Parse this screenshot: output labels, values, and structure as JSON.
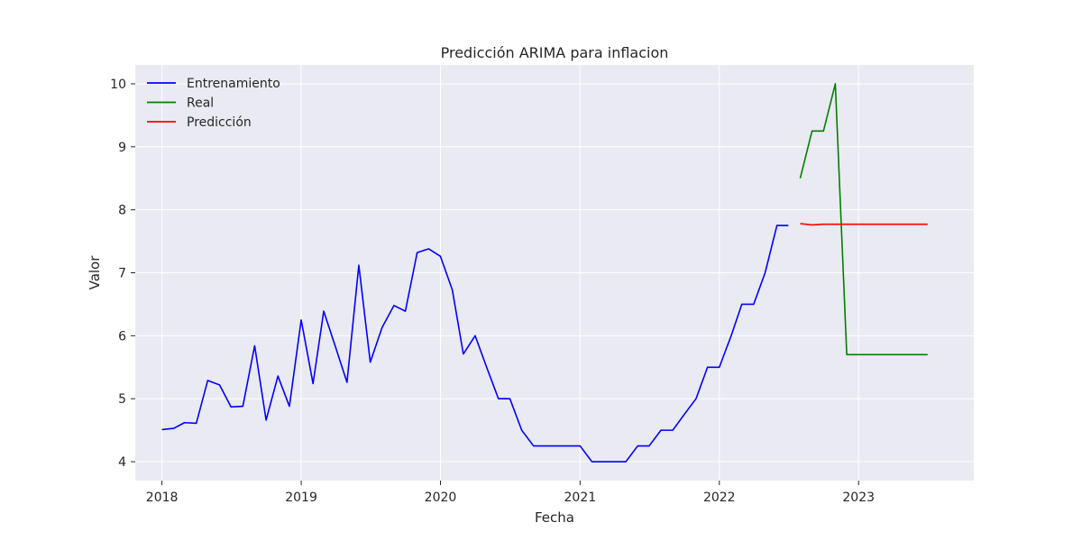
{
  "chart_data": {
    "type": "line",
    "title": "Predicción ARIMA para inflacion",
    "xlabel": "Fecha",
    "ylabel": "Valor",
    "xlim": [
      "2017-10-23",
      "2023-10-30"
    ],
    "ylim": [
      3.7,
      10.3
    ],
    "x_ticks": [
      "2018",
      "2019",
      "2020",
      "2021",
      "2022",
      "2023"
    ],
    "y_ticks": [
      4,
      5,
      6,
      7,
      8,
      9,
      10
    ],
    "grid": true,
    "legend_position": "top-left",
    "series": [
      {
        "name": "Entrenamiento",
        "color": "#0000ff",
        "points": [
          [
            "2018-01",
            4.51
          ],
          [
            "2018-02",
            4.53
          ],
          [
            "2018-03",
            4.62
          ],
          [
            "2018-04",
            4.61
          ],
          [
            "2018-05",
            5.29
          ],
          [
            "2018-06",
            5.22
          ],
          [
            "2018-07",
            4.87
          ],
          [
            "2018-08",
            4.88
          ],
          [
            "2018-09",
            5.84
          ],
          [
            "2018-10",
            4.66
          ],
          [
            "2018-11",
            5.36
          ],
          [
            "2018-12",
            4.88
          ],
          [
            "2019-01",
            6.25
          ],
          [
            "2019-02",
            5.24
          ],
          [
            "2019-03",
            6.39
          ],
          [
            "2019-04",
            5.82
          ],
          [
            "2019-05",
            5.26
          ],
          [
            "2019-06",
            7.12
          ],
          [
            "2019-07",
            5.58
          ],
          [
            "2019-08",
            6.13
          ],
          [
            "2019-09",
            6.48
          ],
          [
            "2019-10",
            6.39
          ],
          [
            "2019-11",
            7.32
          ],
          [
            "2019-12",
            7.38
          ],
          [
            "2020-01",
            7.26
          ],
          [
            "2020-02",
            6.73
          ],
          [
            "2020-03",
            5.71
          ],
          [
            "2020-04",
            6.0
          ],
          [
            "2020-05",
            5.5
          ],
          [
            "2020-06",
            5.0
          ],
          [
            "2020-07",
            5.0
          ],
          [
            "2020-08",
            4.5
          ],
          [
            "2020-09",
            4.25
          ],
          [
            "2020-10",
            4.25
          ],
          [
            "2020-11",
            4.25
          ],
          [
            "2020-12",
            4.25
          ],
          [
            "2021-01",
            4.25
          ],
          [
            "2021-02",
            4.0
          ],
          [
            "2021-03",
            4.0
          ],
          [
            "2021-04",
            4.0
          ],
          [
            "2021-05",
            4.0
          ],
          [
            "2021-06",
            4.25
          ],
          [
            "2021-07",
            4.25
          ],
          [
            "2021-08",
            4.5
          ],
          [
            "2021-09",
            4.5
          ],
          [
            "2021-10",
            4.75
          ],
          [
            "2021-11",
            5.0
          ],
          [
            "2021-12",
            5.5
          ],
          [
            "2022-01",
            5.5
          ],
          [
            "2022-02",
            6.0
          ],
          [
            "2022-03",
            6.5
          ],
          [
            "2022-04",
            6.5
          ],
          [
            "2022-05",
            7.0
          ],
          [
            "2022-06",
            7.75
          ],
          [
            "2022-07",
            7.75
          ]
        ]
      },
      {
        "name": "Real",
        "color": "#008000",
        "points": [
          [
            "2022-08",
            8.5
          ],
          [
            "2022-09",
            9.25
          ],
          [
            "2022-10",
            9.25
          ],
          [
            "2022-11",
            10.0
          ],
          [
            "2022-12",
            5.7
          ],
          [
            "2023-01",
            5.7
          ],
          [
            "2023-02",
            5.7
          ],
          [
            "2023-03",
            5.7
          ],
          [
            "2023-04",
            5.7
          ],
          [
            "2023-05",
            5.7
          ],
          [
            "2023-06",
            5.7
          ],
          [
            "2023-07",
            5.7
          ]
        ]
      },
      {
        "name": "Predicción",
        "color": "#ff0000",
        "points": [
          [
            "2022-08",
            7.78
          ],
          [
            "2022-09",
            7.76
          ],
          [
            "2022-10",
            7.77
          ],
          [
            "2022-11",
            7.77
          ],
          [
            "2022-12",
            7.77
          ],
          [
            "2023-01",
            7.77
          ],
          [
            "2023-02",
            7.77
          ],
          [
            "2023-03",
            7.77
          ],
          [
            "2023-04",
            7.77
          ],
          [
            "2023-05",
            7.77
          ],
          [
            "2023-06",
            7.77
          ],
          [
            "2023-07",
            7.77
          ]
        ]
      }
    ]
  },
  "colors": {
    "plot_background": "#eaeaf2",
    "grid": "#ffffff",
    "text": "#262626"
  }
}
